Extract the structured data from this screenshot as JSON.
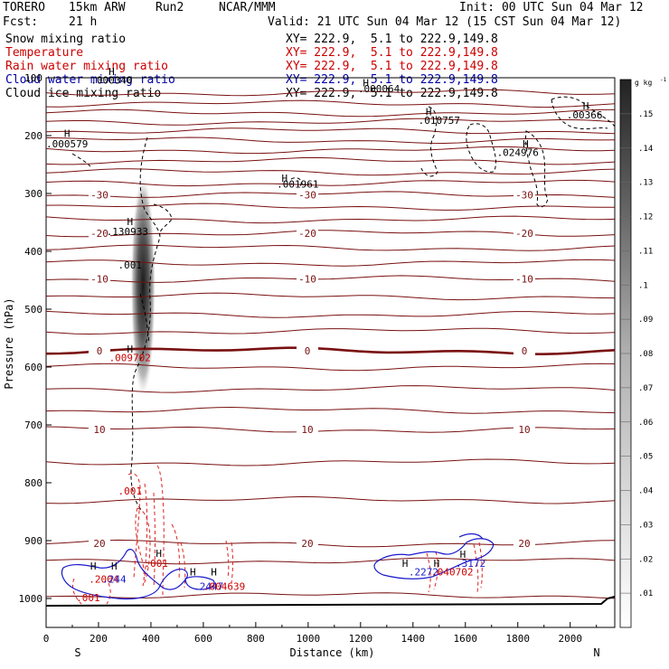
{
  "header": {
    "model": "TORERO",
    "resolution": "15km ARW",
    "run": "Run2",
    "org": "NCAR/MMM",
    "fcst_label": "Fcst:",
    "fcst_value": "21 h",
    "init": "Init: 00 UTC Sun 04 Mar 12",
    "valid": "Valid: 21 UTC Sun 04 Mar 12 (15 CST Sun 04 Mar 12)"
  },
  "fields": [
    {
      "name": "Snow mixing ratio",
      "xs": "XY= 222.9,  5.1 to 222.9,149.8",
      "color": "#000000"
    },
    {
      "name": "Temperature",
      "xs": "XY= 222.9,  5.1 to 222.9,149.8",
      "color": "#cc0000"
    },
    {
      "name": "Rain water mixing ratio",
      "xs": "XY= 222.9,  5.1 to 222.9,149.8",
      "color": "#cc0000"
    },
    {
      "name": "Cloud water mixing ratio",
      "xs": "XY= 222.9,  5.1 to 222.9,149.8",
      "color": "#0000aa"
    },
    {
      "name": "Cloud ice mixing ratio",
      "xs": "XY= 222.9,  5.1 to 222.9,149.8",
      "color": "#000000"
    }
  ],
  "colors": {
    "isotherm": "#7a1010",
    "rain": "#dd2222",
    "cloud_water": "#1a1acc",
    "ice": "#000000",
    "ground": "#000000"
  },
  "chart_data": {
    "type": "cross-section",
    "xlabel": "Distance (km)",
    "ylabel": "Pressure (hPa)",
    "xlim": [
      0,
      2170
    ],
    "ylim": [
      1050,
      100
    ],
    "xticks": [
      0,
      200,
      400,
      600,
      800,
      1000,
      1200,
      1400,
      1600,
      1800,
      2000
    ],
    "yticks": [
      100,
      200,
      300,
      400,
      500,
      600,
      700,
      800,
      900,
      1000
    ],
    "end_labels": {
      "left": "S",
      "right": "N"
    },
    "colorbar": {
      "unit": "g kg",
      "unit_exp": "-1",
      "ticks": [
        0.01,
        0.02,
        0.03,
        0.04,
        0.05,
        0.06,
        0.07,
        0.08,
        0.09,
        0.1,
        0.11,
        0.12,
        0.13,
        0.14,
        0.15
      ],
      "tick_labels": [
        ".01",
        ".02",
        ".03",
        ".04",
        ".05",
        ".06",
        ".07",
        ".08",
        ".09",
        ".1",
        ".11",
        ".12",
        ".13",
        ".14",
        ".15"
      ],
      "range": [
        0,
        0.16
      ]
    },
    "isotherms": [
      {
        "p": 126,
        "label": ""
      },
      {
        "p": 145,
        "label": ""
      },
      {
        "p": 161,
        "label": ""
      },
      {
        "p": 176,
        "label": ""
      },
      {
        "p": 192,
        "label": ""
      },
      {
        "p": 208,
        "label": ""
      },
      {
        "p": 225,
        "label": ""
      },
      {
        "p": 244,
        "label": ""
      },
      {
        "p": 263,
        "label": ""
      },
      {
        "p": 282,
        "label": ""
      },
      {
        "p": 302,
        "label": "-30"
      },
      {
        "p": 323,
        "label": ""
      },
      {
        "p": 345,
        "label": ""
      },
      {
        "p": 369,
        "label": "-20"
      },
      {
        "p": 394,
        "label": ""
      },
      {
        "p": 420,
        "label": ""
      },
      {
        "p": 448,
        "label": "-10"
      },
      {
        "p": 478,
        "label": ""
      },
      {
        "p": 509,
        "label": ""
      },
      {
        "p": 538,
        "label": ""
      },
      {
        "p": 572,
        "label": "0",
        "bold": true
      },
      {
        "p": 600,
        "label": ""
      },
      {
        "p": 638,
        "label": ""
      },
      {
        "p": 675,
        "label": ""
      },
      {
        "p": 708,
        "label": "10"
      },
      {
        "p": 765,
        "label": ""
      },
      {
        "p": 830,
        "label": ""
      },
      {
        "p": 905,
        "label": "20"
      },
      {
        "p": 935,
        "label": ""
      },
      {
        "p": 995,
        "label": ""
      }
    ],
    "ice_maximum": {
      "x": 370,
      "p": 460,
      "value": 0.15
    },
    "annotations": [
      {
        "x": 250,
        "p": 110,
        "text": ".000340",
        "color": "#000000"
      },
      {
        "x": 1270,
        "p": 125,
        "text": ".000064",
        "color": "#000000"
      },
      {
        "x": 80,
        "p": 220,
        "text": ".000579",
        "color": "#000000"
      },
      {
        "x": 1500,
        "p": 180,
        "text": ".010757",
        "color": "#000000"
      },
      {
        "x": 2055,
        "p": 170,
        "text": ".00366",
        "color": "#000000"
      },
      {
        "x": 1800,
        "p": 235,
        "text": ".024976",
        "color": "#000000"
      },
      {
        "x": 960,
        "p": 290,
        "text": ".001961",
        "color": "#000000"
      },
      {
        "x": 310,
        "p": 372,
        "text": ".130933",
        "color": "#000000"
      },
      {
        "x": 320,
        "p": 430,
        "text": ".001",
        "color": "#000000"
      },
      {
        "x": 320,
        "p": 590,
        "text": ".009702",
        "color": "#cc0000"
      },
      {
        "x": 320,
        "p": 820,
        "text": ".001",
        "color": "#cc0000"
      },
      {
        "x": 420,
        "p": 945,
        "text": ".001",
        "color": "#cc0000"
      },
      {
        "x": 220,
        "p": 973,
        "text": ".2004",
        "color": "#cc0000"
      },
      {
        "x": 260,
        "p": 973,
        "text": ".244",
        "color": "#1a1acc"
      },
      {
        "x": 620,
        "p": 985,
        "text": ".2447",
        "color": "#1a1acc"
      },
      {
        "x": 680,
        "p": 985,
        "text": ".004639",
        "color": "#cc0000"
      },
      {
        "x": 1440,
        "p": 960,
        "text": ".2272",
        "color": "#1a1acc"
      },
      {
        "x": 1550,
        "p": 960,
        "text": ".040702",
        "color": "#cc0000"
      },
      {
        "x": 1620,
        "p": 945,
        "text": ".3172",
        "color": "#1a1acc"
      },
      {
        "x": 160,
        "p": 1005,
        "text": ".001",
        "color": "#cc0000"
      }
    ],
    "h_markers": [
      {
        "x": 250,
        "p": 95
      },
      {
        "x": 1220,
        "p": 115
      },
      {
        "x": 80,
        "p": 202
      },
      {
        "x": 1460,
        "p": 165
      },
      {
        "x": 2060,
        "p": 155
      },
      {
        "x": 1830,
        "p": 220
      },
      {
        "x": 910,
        "p": 280
      },
      {
        "x": 320,
        "p": 355
      },
      {
        "x": 320,
        "p": 575
      },
      {
        "x": 180,
        "p": 950
      },
      {
        "x": 260,
        "p": 950
      },
      {
        "x": 430,
        "p": 928
      },
      {
        "x": 560,
        "p": 960
      },
      {
        "x": 640,
        "p": 960
      },
      {
        "x": 1370,
        "p": 945
      },
      {
        "x": 1490,
        "p": 945
      },
      {
        "x": 1590,
        "p": 930
      }
    ]
  }
}
